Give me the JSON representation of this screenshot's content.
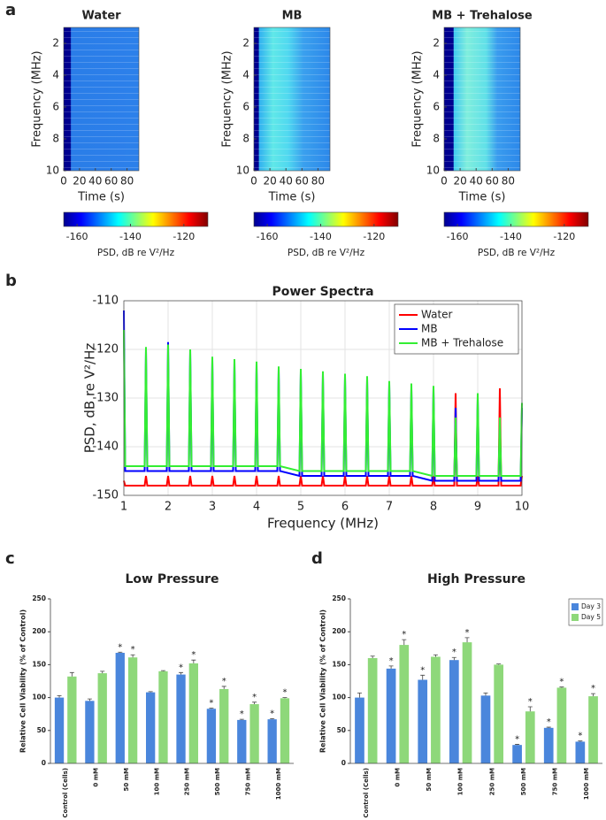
{
  "panel_labels": [
    "a",
    "b",
    "c",
    "d"
  ],
  "chart_data": [
    {
      "type": "heatmap",
      "title": "Water",
      "xlabel": "Time (s)",
      "ylabel": "Frequency (MHz)",
      "xlim": [
        0,
        95
      ],
      "ylim": [
        10,
        1
      ],
      "xticks": [
        0,
        20,
        40,
        60,
        80
      ],
      "yticks": [
        2,
        4,
        6,
        8,
        10
      ],
      "colorbar": {
        "label": "PSD, dB re V²/Hz",
        "lim": [
          -165,
          -111
        ],
        "ticks": [
          -160,
          -140,
          -120
        ]
      }
    },
    {
      "type": "heatmap",
      "title": "MB",
      "xlabel": "Time (s)",
      "ylabel": "Frequency (MHz)",
      "xlim": [
        0,
        95
      ],
      "ylim": [
        10,
        1
      ],
      "xticks": [
        0,
        20,
        40,
        60,
        80
      ],
      "yticks": [
        2,
        4,
        6,
        8,
        10
      ],
      "colorbar": {
        "label": "PSD, dB re V²/Hz",
        "lim": [
          -165,
          -111
        ],
        "ticks": [
          -160,
          -140,
          -120
        ]
      }
    },
    {
      "type": "heatmap",
      "title": "MB + Trehalose",
      "xlabel": "Time (s)",
      "ylabel": "Frequency (MHz)",
      "xlim": [
        0,
        95
      ],
      "ylim": [
        10,
        1
      ],
      "xticks": [
        0,
        20,
        40,
        60,
        80
      ],
      "yticks": [
        2,
        4,
        6,
        8,
        10
      ],
      "colorbar": {
        "label": "PSD, dB re V²/Hz",
        "lim": [
          -165,
          -111
        ],
        "ticks": [
          -160,
          -140,
          -120
        ]
      }
    },
    {
      "type": "line",
      "title": "Power Spectra",
      "xlabel": "Frequency (MHz)",
      "ylabel": "PSD, dB re V²/Hz",
      "xlim": [
        1,
        10
      ],
      "ylim": [
        -150,
        -110
      ],
      "xticks": [
        1,
        2,
        3,
        4,
        5,
        6,
        7,
        8,
        9,
        10
      ],
      "yticks": [
        -150,
        -140,
        -130,
        -120,
        -110
      ],
      "grid": true,
      "legend": "upper right",
      "x": [
        1,
        1.03,
        1.47,
        1.5,
        1.53,
        1.97,
        2,
        2.03,
        2.47,
        2.5,
        2.53,
        2.97,
        3,
        3.03,
        3.47,
        3.5,
        3.53,
        3.97,
        4,
        4.03,
        4.47,
        4.5,
        4.53,
        4.97,
        5,
        5.03,
        5.47,
        5.5,
        5.53,
        5.97,
        6,
        6.03,
        6.47,
        6.5,
        6.53,
        6.97,
        7,
        7.03,
        7.47,
        7.5,
        7.53,
        7.97,
        8,
        8.03,
        8.47,
        8.5,
        8.53,
        8.97,
        9,
        9.03,
        9.47,
        9.5,
        9.53,
        9.97,
        10
      ],
      "series": [
        {
          "name": "Water",
          "color": "#ff0000",
          "values": [
            -147,
            -148,
            -148,
            -146,
            -148,
            -148,
            -146,
            -148,
            -148,
            -146,
            -148,
            -148,
            -146,
            -148,
            -148,
            -146,
            -148,
            -148,
            -146,
            -148,
            -148,
            -146,
            -148,
            -148,
            -146,
            -148,
            -148,
            -146,
            -148,
            -148,
            -146,
            -148,
            -148,
            -146,
            -148,
            -148,
            -146,
            -148,
            -148,
            -146,
            -148,
            -148,
            -146,
            -148,
            -148,
            -129,
            -148,
            -148,
            -146,
            -148,
            -148,
            -128,
            -148,
            -148,
            -146
          ]
        },
        {
          "name": "MB",
          "color": "#0000ff",
          "values": [
            -112,
            -145,
            -145,
            -120,
            -145,
            -145,
            -118.5,
            -145,
            -145,
            -120,
            -145,
            -145,
            -122,
            -145,
            -145,
            -122.5,
            -145,
            -145,
            -123,
            -145,
            -145,
            -124,
            -145,
            -146,
            -124.5,
            -146,
            -146,
            -125,
            -146,
            -146,
            -125.5,
            -146,
            -146,
            -126,
            -146,
            -146,
            -127,
            -146,
            -146,
            -128,
            -146,
            -147,
            -128,
            -147,
            -147,
            -132,
            -147,
            -147,
            -130,
            -147,
            -147,
            -136,
            -147,
            -147,
            -132
          ]
        },
        {
          "name": "MB + Trehalose",
          "color": "#33ee33",
          "values": [
            -116,
            -144,
            -144,
            -119.5,
            -144,
            -144,
            -119,
            -144,
            -144,
            -120,
            -144,
            -144,
            -121.5,
            -144,
            -144,
            -122,
            -144,
            -144,
            -122.5,
            -144,
            -144,
            -123.5,
            -144,
            -145,
            -124,
            -145,
            -145,
            -124.5,
            -145,
            -145,
            -125,
            -145,
            -145,
            -125.5,
            -145,
            -145,
            -126.5,
            -145,
            -145,
            -127,
            -145,
            -146,
            -127.5,
            -146,
            -146,
            -134,
            -146,
            -146,
            -129,
            -146,
            -146,
            -134,
            -146,
            -146,
            -131
          ]
        }
      ]
    },
    {
      "type": "bar",
      "title": "Low Pressure",
      "ylabel": "Relative Cell Viability (% of Control)",
      "ylim": [
        0,
        250
      ],
      "yticks": [
        0,
        50,
        100,
        150,
        200,
        250
      ],
      "legend": false,
      "categories": [
        "Control (Cells)",
        "0 mM",
        "50 mM",
        "100 mM",
        "250 mM",
        "500 mM",
        "750 mM",
        "1000 mM"
      ],
      "series": [
        {
          "color": "#4a86dc",
          "values": [
            100,
            95,
            168,
            108,
            135,
            83,
            66,
            67
          ],
          "errors": [
            3,
            3,
            1,
            1,
            3,
            1,
            1,
            1
          ],
          "stars": [
            null,
            null,
            "*",
            null,
            "*",
            "*",
            "*",
            "*"
          ]
        },
        {
          "color": "#8ed87a",
          "values": [
            132,
            137,
            161,
            140,
            152,
            113,
            90,
            99
          ],
          "errors": [
            6,
            3,
            4,
            1,
            5,
            4,
            3,
            1
          ],
          "stars": [
            null,
            null,
            "*",
            null,
            "*",
            "*",
            "*",
            "*"
          ]
        }
      ]
    },
    {
      "type": "bar",
      "title": "High Pressure",
      "ylabel": "Relative Cell Viability (% of Control)",
      "ylim": [
        0,
        250
      ],
      "yticks": [
        0,
        50,
        100,
        150,
        200,
        250
      ],
      "legend": "upper right",
      "categories": [
        "Control (Cells)",
        "0 mM",
        "50 mM",
        "100 mM",
        "250 mM",
        "500 mM",
        "750 mM",
        "1000 mM"
      ],
      "series": [
        {
          "name": "Day 3",
          "color": "#4a86dc",
          "values": [
            100,
            144,
            127,
            157,
            103,
            28,
            54,
            33
          ],
          "errors": [
            7,
            4,
            7,
            4,
            4,
            1,
            1,
            1
          ],
          "stars": [
            null,
            "*",
            "*",
            "*",
            null,
            "*",
            "*",
            "*"
          ]
        },
        {
          "name": "Day 5",
          "color": "#8ed87a",
          "values": [
            160,
            180,
            162,
            184,
            150,
            79,
            115,
            102
          ],
          "errors": [
            3,
            8,
            3,
            7,
            1,
            7,
            1,
            4
          ],
          "stars": [
            null,
            "*",
            null,
            "*",
            null,
            "*",
            "*",
            "*"
          ]
        }
      ]
    }
  ]
}
